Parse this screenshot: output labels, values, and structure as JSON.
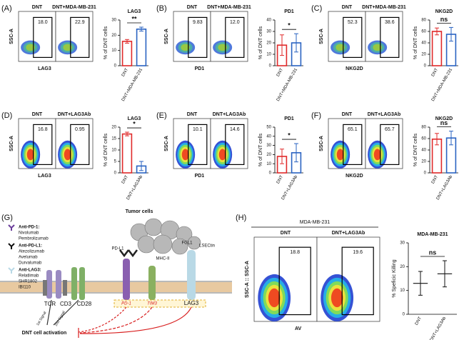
{
  "panels": [
    {
      "label": "(A)",
      "conditions": [
        "DNT",
        "DNT+MDA-MB-231"
      ],
      "gates": [
        "18.0",
        "22.9"
      ],
      "y_axis": "SSC-A",
      "x_axis": "LAG3",
      "chart": {
        "type": "bar",
        "title": "LAG3",
        "y_label": "% of DNT cells",
        "categories": [
          "DNT",
          "DNT+MDA-MB-231"
        ],
        "values": [
          16,
          24
        ],
        "errors": [
          1.2,
          1.3
        ],
        "colors": [
          "#e02a2a",
          "#2a63c2"
        ],
        "ylim": [
          0,
          30
        ],
        "yticks": [
          0,
          10,
          20,
          30
        ],
        "significance": "**"
      }
    },
    {
      "label": "(B)",
      "conditions": [
        "DNT",
        "DNT+MDA-MB-231"
      ],
      "gates": [
        "9.83",
        "12.0"
      ],
      "y_axis": "SSC-A",
      "x_axis": "PD1",
      "chart": {
        "type": "bar",
        "title": "PD1",
        "y_label": "% of DNT cells",
        "categories": [
          "DNT",
          "DNT+MDA-MB-231"
        ],
        "values": [
          18,
          20
        ],
        "errors": [
          9,
          8
        ],
        "colors": [
          "#e02a2a",
          "#2a63c2"
        ],
        "ylim": [
          0,
          40
        ],
        "yticks": [
          0,
          10,
          20,
          30,
          40
        ],
        "significance": "*"
      }
    },
    {
      "label": "(C)",
      "conditions": [
        "DNT",
        "DNT+MDA-MB-231"
      ],
      "gates": [
        "52.3",
        "38.6"
      ],
      "y_axis": "SSC-A",
      "x_axis": "NKG2D",
      "chart": {
        "type": "bar",
        "title": "NKG2D",
        "y_label": "% of DNT cells",
        "categories": [
          "DNT",
          "DNT+MDA-MB-231"
        ],
        "values": [
          60,
          55
        ],
        "errors": [
          6,
          12
        ],
        "colors": [
          "#e02a2a",
          "#2a63c2"
        ],
        "ylim": [
          0,
          80
        ],
        "yticks": [
          0,
          20,
          40,
          60,
          80
        ],
        "significance": "ns"
      }
    },
    {
      "label": "(D)",
      "conditions": [
        "DNT",
        "DNT+LAG3Ab"
      ],
      "gates": [
        "16.8",
        "0.95"
      ],
      "y_axis": "SSC-A",
      "x_axis": "LAG3",
      "chart": {
        "type": "bar",
        "title": "LAG3",
        "y_label": "% of DNT cells",
        "categories": [
          "DNT",
          "DNT+LAG3Ab"
        ],
        "values": [
          17,
          3
        ],
        "errors": [
          0.8,
          2
        ],
        "colors": [
          "#e02a2a",
          "#2a63c2"
        ],
        "ylim": [
          0,
          20
        ],
        "yticks": [
          0,
          5,
          10,
          15,
          20
        ],
        "significance": "*"
      }
    },
    {
      "label": "(E)",
      "conditions": [
        "DNT",
        "DNT+LAG3Ab"
      ],
      "gates": [
        "10.1",
        "14.6"
      ],
      "y_axis": "SSC-A",
      "x_axis": "PD1",
      "chart": {
        "type": "bar",
        "title": "PD1",
        "y_label": "% of DNT cells",
        "categories": [
          "DNT",
          "DNT+LAG3Ab"
        ],
        "values": [
          18,
          22
        ],
        "errors": [
          8,
          10
        ],
        "colors": [
          "#e02a2a",
          "#2a63c2"
        ],
        "ylim": [
          0,
          50
        ],
        "yticks": [
          0,
          10,
          20,
          30,
          40,
          50
        ],
        "significance": "*"
      }
    },
    {
      "label": "(F)",
      "conditions": [
        "DNT",
        "DNT+LAG3Ab"
      ],
      "gates": [
        "65.1",
        "65.7"
      ],
      "y_axis": "SSC-A",
      "x_axis": "NKG2D",
      "chart": {
        "type": "bar",
        "title": "NKG2D",
        "y_label": "% of DNT cells",
        "categories": [
          "DNT",
          "DNT+LAG3Ab"
        ],
        "values": [
          59,
          61
        ],
        "errors": [
          10,
          12
        ],
        "colors": [
          "#e02a2a",
          "#2a63c2"
        ],
        "ylim": [
          0,
          80
        ],
        "yticks": [
          0,
          20,
          40,
          60,
          80
        ],
        "significance": "ns"
      }
    },
    {
      "label": "(H)",
      "header": "MDA-MB-231",
      "conditions": [
        "DNT",
        "DNT+LAG3Ab"
      ],
      "gates": [
        "18.8",
        "19.6"
      ],
      "y_axis": "SSC-A :: SSC-A",
      "x_axis": "AV",
      "chart": {
        "type": "mean_error",
        "title": "MDA-MB-231",
        "y_label": "% Speficic Killing",
        "categories": [
          "DNT",
          "DNT+LAG3Ab"
        ],
        "values": [
          13,
          17
        ],
        "errors": [
          5,
          5.5
        ],
        "colors": [
          "#111111",
          "#111111"
        ],
        "ylim": [
          0,
          30
        ],
        "yticks": [
          0,
          10,
          20,
          30
        ],
        "significance": "ns"
      }
    }
  ],
  "diagram": {
    "label": "(G)",
    "tumor": "Tumor cells",
    "legend": [
      "Anti-PD-1:",
      "Nivolumab",
      "Pembrolizumab",
      "Anti-PD-L1:",
      "Atezolizumab",
      "Avelumab",
      "Durvalumab",
      "Anti-LAG3:",
      "Relatlimab",
      "SHR1802",
      "IBI110"
    ],
    "ligands": [
      "PD-L1",
      "MHC-II",
      "FGL1",
      "LSECtin"
    ],
    "receptors": [
      "TCR",
      "CD3",
      "CD28",
      "PD-1",
      "TIM3",
      "LAG3"
    ],
    "signals": [
      "1st Signal",
      "2nd Signal"
    ],
    "outcome": "DNT cell activation"
  }
}
